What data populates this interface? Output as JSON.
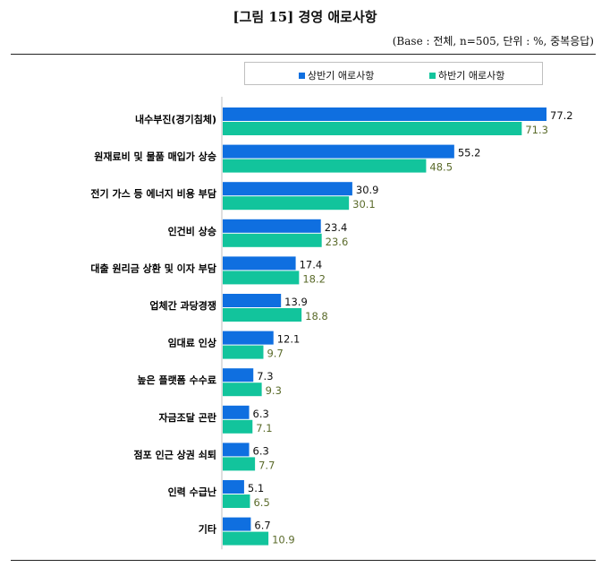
{
  "header": {
    "title": "[그림 15] 경영 애로사항",
    "subtitle": "(Base : 전체, n=505, 단위 : %, 중복응답)"
  },
  "legend": {
    "items": [
      {
        "label": "상반기 애로사항",
        "color": "#0f6fe0"
      },
      {
        "label": "하반기 애로사항",
        "color": "#12c49c"
      }
    ]
  },
  "chart_data": {
    "type": "bar",
    "orientation": "horizontal",
    "categories": [
      "내수부진(경기침체)",
      "원재료비 및 물품 매입가 상승",
      "전기 가스 등 에너지 비용 부담",
      "인건비 상승",
      "대출 원리금 상환 및 이자 부담",
      "업체간 과당경쟁",
      "임대료 인상",
      "높은 플랫폼 수수료",
      "자금조달 곤란",
      "점포 인근 상권 쇠퇴",
      "인력 수급난",
      "기타"
    ],
    "series": [
      {
        "name": "상반기 애로사항",
        "color": "#0f6fe0",
        "label_color": "#111111",
        "values": [
          77.2,
          55.2,
          30.9,
          23.4,
          17.4,
          13.9,
          12.1,
          7.3,
          6.3,
          6.3,
          5.1,
          6.7
        ]
      },
      {
        "name": "하반기 애로사항",
        "color": "#12c49c",
        "label_color": "#5b6b2b",
        "values": [
          71.3,
          48.5,
          30.1,
          23.6,
          18.2,
          18.8,
          9.7,
          9.3,
          7.1,
          7.7,
          6.5,
          10.9
        ]
      }
    ],
    "xlim": [
      0,
      77.2
    ],
    "grid": false,
    "legend_position": "top"
  }
}
